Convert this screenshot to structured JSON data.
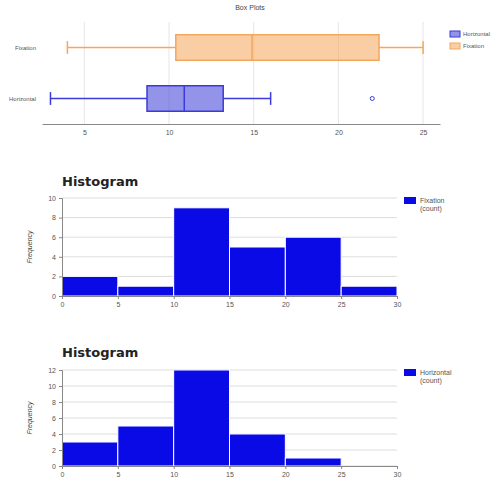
{
  "chart_data": [
    {
      "type": "box",
      "title": "Box Plots",
      "orientation": "horizontal",
      "series": [
        {
          "name": "Horizontal",
          "color": "#3b3bd9",
          "min": 3,
          "q1": 8.7,
          "median": 10.9,
          "q3": 13.2,
          "max": 16,
          "outliers": [
            22
          ]
        },
        {
          "name": "Fixation",
          "color": "#f5a65b",
          "min": 4,
          "q1": 10.4,
          "median": 14.9,
          "q3": 22.4,
          "max": 25,
          "outliers": []
        }
      ],
      "xlim": [
        2.5,
        26
      ],
      "xticks": [
        5,
        10,
        15,
        20,
        25
      ],
      "grid": true,
      "legend": "top-right"
    },
    {
      "type": "histogram",
      "title": "Histogram",
      "ylabel": "Frequency",
      "bins": [
        0,
        5,
        10,
        15,
        20,
        25,
        30
      ],
      "series": [
        {
          "name": "Fixation (count)",
          "color": "#0a0ae6",
          "values": [
            2,
            1,
            9,
            5,
            6,
            1
          ]
        }
      ],
      "xlim": [
        0,
        30
      ],
      "xticks": [
        0,
        5,
        10,
        15,
        20,
        25,
        30
      ],
      "ylim": [
        0,
        10
      ],
      "yticks": [
        0,
        2,
        4,
        6,
        8,
        10
      ],
      "grid": true,
      "legend": "top-right"
    },
    {
      "type": "histogram",
      "title": "Histogram",
      "ylabel": "Frequency",
      "bins": [
        0,
        5,
        10,
        15,
        20,
        25,
        30
      ],
      "series": [
        {
          "name": "Horizontal (count)",
          "color": "#0a0ae6",
          "values": [
            3,
            5,
            12,
            4,
            1,
            0
          ]
        }
      ],
      "xlim": [
        0,
        30
      ],
      "xticks": [
        0,
        5,
        10,
        15,
        20,
        25,
        30
      ],
      "ylim": [
        0,
        12
      ],
      "yticks": [
        0,
        2,
        4,
        6,
        8,
        10,
        12
      ],
      "grid": true,
      "legend": "top-right"
    }
  ]
}
